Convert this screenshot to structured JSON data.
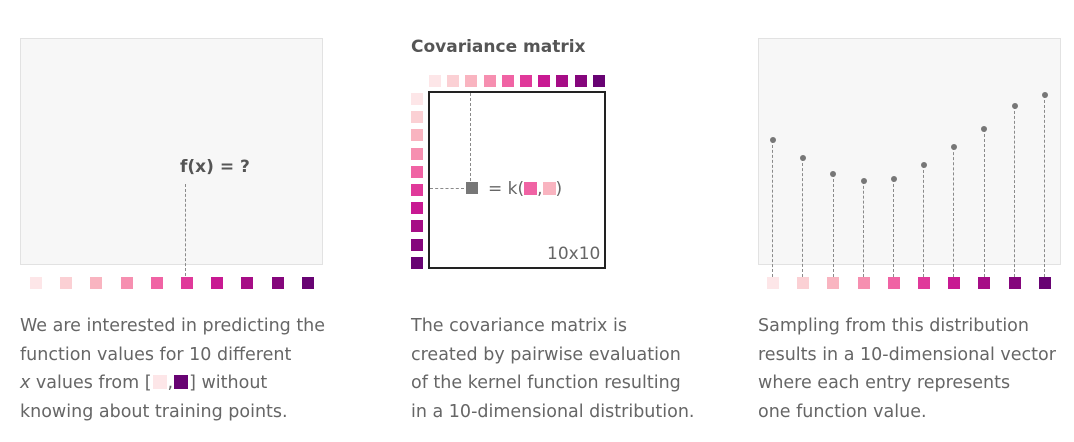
{
  "palette": [
    "#fde6e8",
    "#fbd0d4",
    "#f9b4c0",
    "#f68fb0",
    "#f063a4",
    "#e0399a",
    "#c81992",
    "#a60d86",
    "#85067c",
    "#680373"
  ],
  "panel1": {
    "label": "f(x) = ?",
    "caption": {
      "line1": "We are interested in predicting the",
      "line2": "function values for 10 different",
      "line3_var": "x",
      "line3_mid": " values from [",
      "line3_sep": ",",
      "line3_end": "] without",
      "line4": "knowing about training points."
    }
  },
  "panel2": {
    "title": "Covariance matrix",
    "kernel_prefix": "= k(",
    "kernel_sep": ",",
    "kernel_suffix": ")",
    "size_label": "10x10",
    "caption": {
      "line1": "The covariance matrix is",
      "line2": "created by pairwise evaluation",
      "line3": "of the kernel function resulting",
      "line4": "in a 10-dimensional distribution."
    }
  },
  "panel3": {
    "sample_values": [
      0.55,
      0.47,
      0.4,
      0.37,
      0.38,
      0.44,
      0.52,
      0.6,
      0.7,
      0.75
    ],
    "caption": {
      "line1": "Sampling from this distribution",
      "line2": "results in a 10-dimensional vector",
      "line3": "where each entry represents",
      "line4": "one function value."
    }
  }
}
